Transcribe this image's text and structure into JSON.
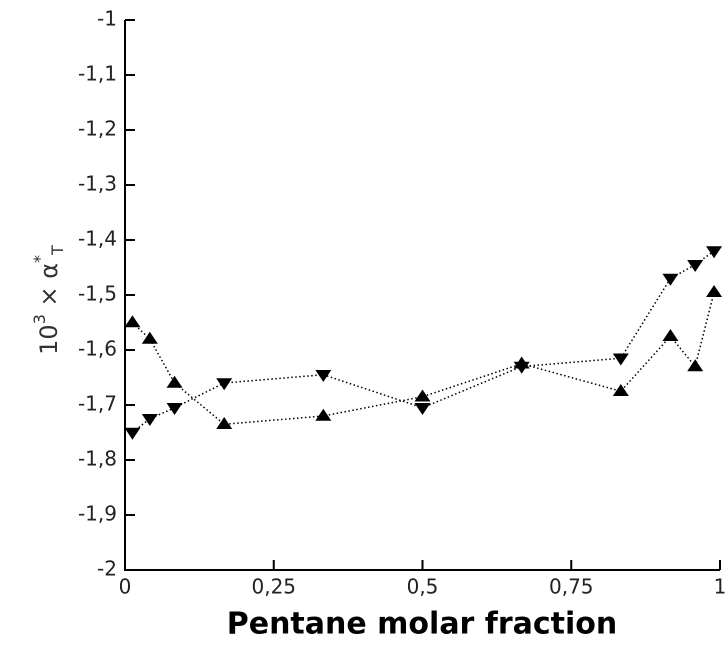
{
  "chart_data": {
    "type": "line",
    "xlabel": "Pentane molar fraction",
    "ylabel": {
      "base": "10",
      "exp": "3",
      "mid": " × α",
      "star": "*",
      "sub": "T"
    },
    "x": [
      0.0125,
      0.0417,
      0.0833,
      0.1667,
      0.3333,
      0.5,
      0.6667,
      0.8333,
      0.9167,
      0.9583,
      0.99
    ],
    "series": [
      {
        "marker": "triangle-down",
        "color": "#000000",
        "values": [
          -1.75,
          -1.725,
          -1.705,
          -1.66,
          -1.645,
          -1.705,
          -1.63,
          -1.615,
          -1.47,
          -1.445,
          -1.42
        ]
      },
      {
        "marker": "triangle-up",
        "color": "#000000",
        "values": [
          -1.55,
          -1.58,
          -1.66,
          -1.735,
          -1.72,
          -1.685,
          -1.625,
          -1.675,
          -1.575,
          -1.63,
          -1.495
        ]
      }
    ],
    "xlim": [
      0,
      1
    ],
    "xticks": [
      0,
      {
        "value": 0.25,
        "label": "0,25"
      },
      {
        "value": 0.5,
        "label": "0,5"
      },
      {
        "value": 0.75,
        "label": "0,75"
      },
      1
    ],
    "ylim": [
      -2,
      -1
    ],
    "yticks": [
      -2,
      {
        "value": -1.9,
        "label": "-1,9"
      },
      {
        "value": -1.8,
        "label": "-1,8"
      },
      {
        "value": -1.7,
        "label": "-1,7"
      },
      {
        "value": -1.6,
        "label": "-1,6"
      },
      {
        "value": -1.5,
        "label": "-1,5"
      },
      {
        "value": -1.4,
        "label": "-1,4"
      },
      {
        "value": -1.3,
        "label": "-1,3"
      },
      {
        "value": -1.2,
        "label": "-1,2"
      },
      {
        "value": -1.1,
        "label": "-1,1"
      },
      -1
    ],
    "line_style": "dotted"
  }
}
